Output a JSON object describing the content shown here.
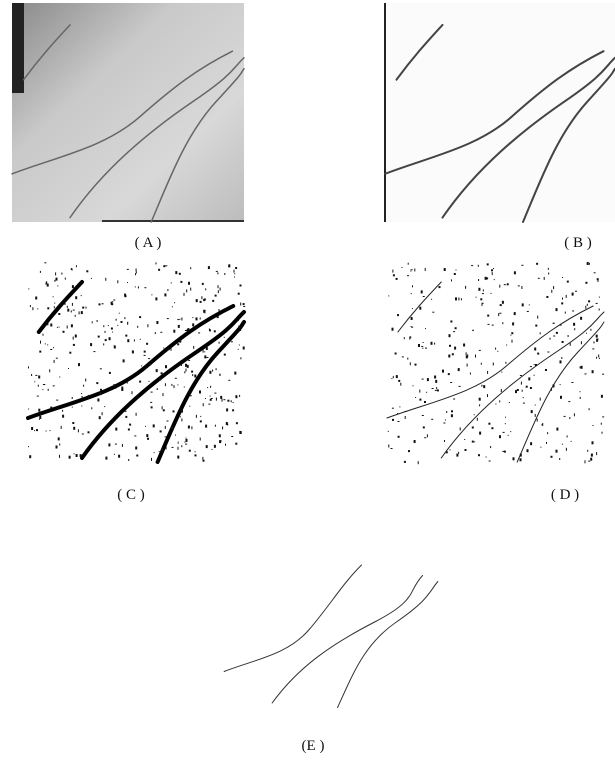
{
  "panels": [
    {
      "label": "( A )"
    },
    {
      "label": "( B )"
    },
    {
      "label": "( C )"
    },
    {
      "label": "( D )"
    },
    {
      "label": "(E )"
    }
  ]
}
